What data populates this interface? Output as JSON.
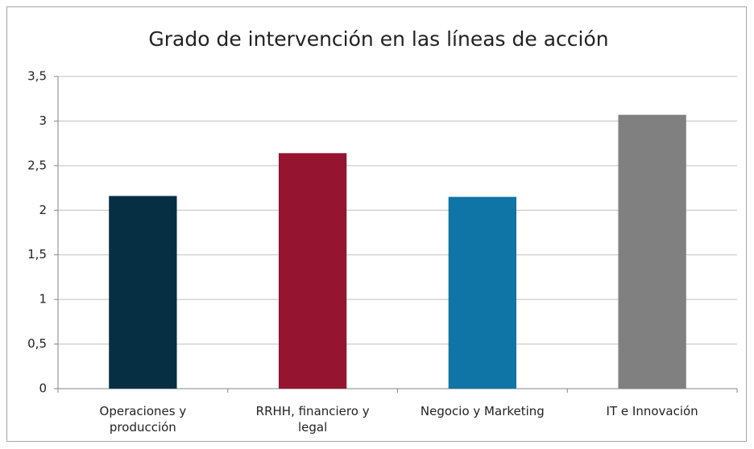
{
  "chart_data": {
    "type": "bar",
    "title": "Grado de intervención en las líneas de acción",
    "categories": [
      "Operaciones y producción",
      "RRHH, financiero y legal",
      "Negocio y Marketing",
      "IT e Innovación"
    ],
    "values": [
      2.16,
      2.64,
      2.15,
      3.07
    ],
    "colors": [
      "#062f44",
      "#951531",
      "#0f74a6",
      "#808080"
    ],
    "ylim": [
      0,
      3.5
    ],
    "yticks": [
      0,
      {
        "value": 0.5,
        "label": "0,5"
      },
      1,
      {
        "value": 1.5,
        "label": "1,5"
      },
      2,
      {
        "value": 2.5,
        "label": "2,5"
      },
      3,
      {
        "value": 3.5,
        "label": "3,5"
      }
    ],
    "grid": true
  }
}
